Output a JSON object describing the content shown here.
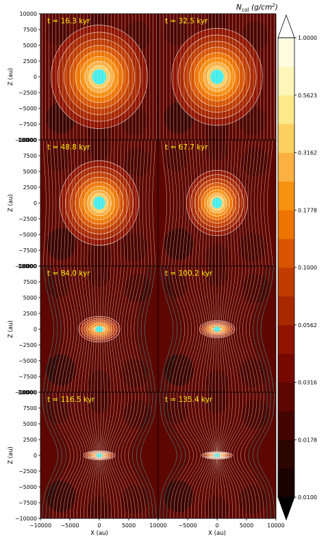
{
  "chart_data": {
    "type": "heatmap",
    "layout": "4 rows x 2 columns of panels sharing axes",
    "xlabel": "X (au)",
    "ylabel": "Z (au)",
    "xlim": [
      -10000,
      10000
    ],
    "ylim": [
      -10000,
      10000
    ],
    "xticks": [
      -10000,
      -5000,
      0,
      5000,
      10000
    ],
    "yticks": [
      -10000,
      -7500,
      -5000,
      -2500,
      0,
      2500,
      5000,
      7500,
      10000
    ],
    "colorbar": {
      "label": "N",
      "label_sub": "col",
      "label_unit": "(g/cm",
      "label_unit_sup": "2",
      "label_unit_close": ")",
      "scale": "log",
      "extend": "both",
      "range": [
        0.01,
        1.0
      ],
      "ticks": [
        "1.0000",
        "0.5623",
        "0.3162",
        "0.1778",
        "0.1000",
        "0.0562",
        "0.0316",
        "0.0178",
        "0.0100"
      ],
      "levels": 16,
      "colors": [
        "#000000",
        "#1a0200",
        "#2c0400",
        "#440500",
        "#5e0600",
        "#760800",
        "#901400",
        "#a82800",
        "#c03c00",
        "#d85400",
        "#ee7400",
        "#f89010",
        "#fbb040",
        "#fcd060",
        "#fde88a",
        "#fef6b8",
        "#fffce0"
      ]
    },
    "panels": [
      {
        "time_label": "t = 16.3 kyr",
        "row": 0,
        "col": 0,
        "core_radius": 8000,
        "flattening": 1.0,
        "field_pinch": 0.0,
        "background_level": 0.04
      },
      {
        "time_label": "t = 32.5 kyr",
        "row": 0,
        "col": 1,
        "core_radius": 7500,
        "flattening": 1.0,
        "field_pinch": 0.0,
        "background_level": 0.04
      },
      {
        "time_label": "t = 48.8 kyr",
        "row": 1,
        "col": 0,
        "core_radius": 6500,
        "flattening": 1.0,
        "field_pinch": 0.1,
        "background_level": 0.035
      },
      {
        "time_label": "t = 67.7 kyr",
        "row": 1,
        "col": 1,
        "core_radius": 5000,
        "flattening": 1.0,
        "field_pinch": 0.2,
        "background_level": 0.035
      },
      {
        "time_label": "t = 84.0 kyr",
        "row": 2,
        "col": 0,
        "core_radius": 3300,
        "flattening": 0.65,
        "field_pinch": 0.45,
        "background_level": 0.035
      },
      {
        "time_label": "t = 100.2 kyr",
        "row": 2,
        "col": 1,
        "core_radius": 2800,
        "flattening": 0.5,
        "field_pinch": 0.6,
        "background_level": 0.033
      },
      {
        "time_label": "t = 116.5 kyr",
        "row": 3,
        "col": 0,
        "core_radius": 2500,
        "flattening": 0.3,
        "field_pinch": 0.8,
        "background_level": 0.032
      },
      {
        "time_label": "t = 135.4 kyr",
        "row": 3,
        "col": 1,
        "core_radius": 2400,
        "flattening": 0.25,
        "field_pinch": 0.9,
        "background_level": 0.032
      }
    ],
    "field_line_color": "#40e0e0",
    "contour_color": "#ffffff",
    "time_label_color": "#ffee00"
  }
}
